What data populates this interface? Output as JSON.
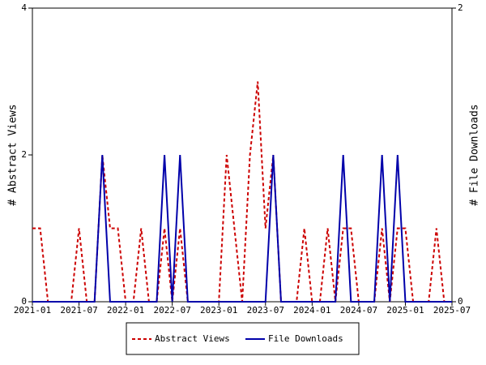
{
  "chart_data": {
    "type": "line",
    "x": [
      "2021-01",
      "2021-02",
      "2021-03",
      "2021-04",
      "2021-05",
      "2021-06",
      "2021-07",
      "2021-08",
      "2021-09",
      "2021-10",
      "2021-11",
      "2021-12",
      "2022-01",
      "2022-02",
      "2022-03",
      "2022-04",
      "2022-05",
      "2022-06",
      "2022-07",
      "2022-08",
      "2022-09",
      "2022-10",
      "2022-11",
      "2022-12",
      "2023-01",
      "2023-02",
      "2023-03",
      "2023-04",
      "2023-05",
      "2023-06",
      "2023-07",
      "2023-08",
      "2023-09",
      "2023-10",
      "2023-11",
      "2023-12",
      "2024-01",
      "2024-02",
      "2024-03",
      "2024-04",
      "2024-05",
      "2024-06",
      "2024-07",
      "2024-08",
      "2024-09",
      "2024-10",
      "2024-11",
      "2024-12",
      "2025-01",
      "2025-02",
      "2025-03",
      "2025-04",
      "2025-05",
      "2025-06",
      "2025-07"
    ],
    "xticks": [
      "2021-01",
      "2021-07",
      "2022-01",
      "2022-07",
      "2023-01",
      "2023-07",
      "2024-01",
      "2024-07",
      "2025-01",
      "2025-07"
    ],
    "ylabel": "# Abstract Views",
    "y2label": "# File Downloads",
    "ylim": [
      0,
      4
    ],
    "yticks": [
      0,
      2,
      4
    ],
    "y2lim": [
      0,
      2
    ],
    "y2ticks": [
      0,
      2
    ],
    "series": [
      {
        "name": "Abstract Views",
        "color": "#cc0000",
        "dashed": true,
        "values": [
          1,
          1,
          0,
          0,
          0,
          0,
          1,
          0,
          0,
          2,
          1,
          1,
          0,
          0,
          1,
          0,
          0,
          1,
          0,
          1,
          0,
          0,
          0,
          0,
          0,
          2,
          1,
          0,
          2,
          3,
          1,
          2,
          0,
          0,
          0,
          1,
          0,
          0,
          1,
          0,
          1,
          1,
          0,
          0,
          0,
          1,
          0,
          1,
          1,
          0,
          0,
          0,
          1,
          0,
          0
        ]
      },
      {
        "name": "File Downloads",
        "color": "#0000aa",
        "axis": "y2",
        "values": [
          0,
          0,
          0,
          0,
          0,
          0,
          0,
          0,
          0,
          1,
          0,
          0,
          0,
          0,
          0,
          0,
          0,
          1,
          0,
          1,
          0,
          0,
          0,
          0,
          0,
          0,
          0,
          0,
          0,
          0,
          0,
          1,
          0,
          0,
          0,
          0,
          0,
          0,
          0,
          0,
          1,
          0,
          0,
          0,
          0,
          1,
          0,
          1,
          0,
          0,
          0,
          0,
          0,
          0,
          0
        ]
      }
    ]
  }
}
